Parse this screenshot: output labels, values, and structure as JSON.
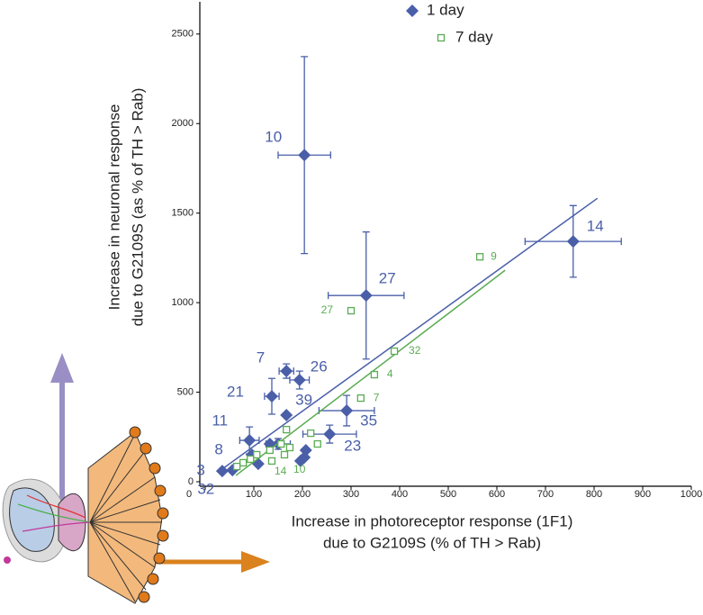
{
  "chart_data": {
    "type": "scatter",
    "xlabel": [
      "Increase in photoreceptor response (1F1)",
      "due to G2109S (% of TH > Rab)"
    ],
    "ylabel": [
      "Increase in neuronal response",
      "due to G2109S (as % of TH > Rab)"
    ],
    "xlim": [
      0,
      1000
    ],
    "ylim": [
      0,
      2680
    ],
    "xticks": [
      0,
      100,
      200,
      300,
      400,
      500,
      600,
      700,
      800,
      900,
      1000
    ],
    "yticks": [
      0,
      500,
      1000,
      1500,
      2000,
      2500
    ],
    "legend": "top",
    "series": [
      {
        "name": "1 day",
        "color": "#4a5fa8",
        "marker": "diamond",
        "x": [
          204,
          757,
          331,
          167,
          194,
          137,
          167,
          291,
          256,
          91,
          96,
          35,
          56,
          133,
          109,
          207,
          204,
          196,
          150
        ],
        "values": [
          1824,
          1342,
          1040,
          618,
          568,
          477,
          372,
          397,
          266,
          231,
          151,
          60,
          65,
          211,
          100,
          176,
          136,
          116,
          211
        ],
        "xerr": [
          54,
          99,
          78,
          15,
          20,
          15,
          null,
          57,
          55,
          20,
          null,
          null,
          null,
          null,
          null,
          null,
          null,
          null,
          25
        ],
        "yerr": [
          550,
          200,
          355,
          40,
          50,
          100,
          null,
          85,
          50,
          75,
          null,
          null,
          null,
          null,
          null,
          null,
          null,
          null,
          30
        ],
        "labels": [
          "10",
          "14",
          "27",
          "7",
          "26",
          "21",
          "39",
          "35",
          "23",
          "11",
          "8",
          "3",
          "32",
          null,
          null,
          null,
          null,
          null,
          null
        ],
        "fit": {
          "x": [
            37,
            807
          ],
          "values": [
            75,
            1583
          ]
        }
      },
      {
        "name": "7 day",
        "color": "#5aac52",
        "marker": "square",
        "x": [
          565,
          389,
          348,
          320,
          300,
          137,
          163,
          167,
          217,
          231,
          156,
          133,
          106,
          93,
          78,
          65,
          174
        ],
        "values": [
          1256,
          729,
          598,
          467,
          955,
          116,
          151,
          291,
          271,
          211,
          211,
          176,
          151,
          126,
          106,
          85,
          191
        ],
        "labels": [
          "9",
          "32",
          "4",
          "7",
          "27",
          "14",
          "10",
          null,
          null,
          null,
          null,
          null,
          null,
          null,
          null,
          null,
          null
        ],
        "fit": {
          "x": [
            63,
            617
          ],
          "values": [
            35,
            1181
          ]
        }
      }
    ]
  }
}
